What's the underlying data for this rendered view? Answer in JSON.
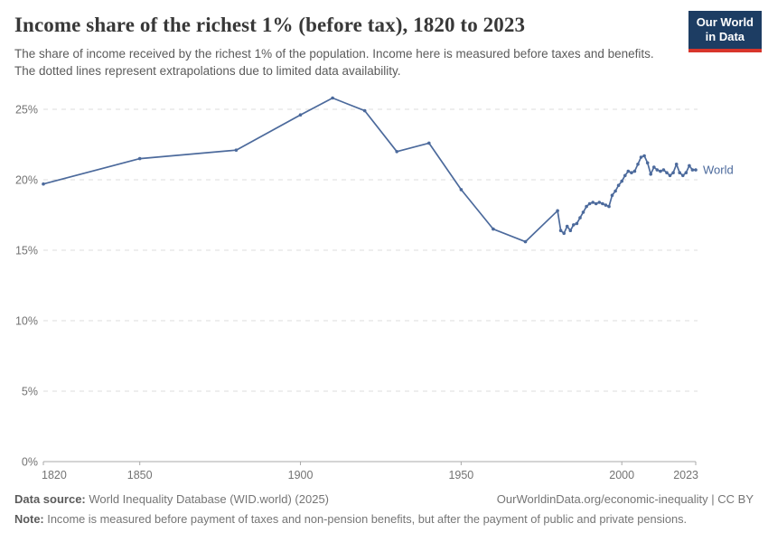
{
  "header": {
    "title": "Income share of the richest 1% (before tax), 1820 to 2023",
    "subtitle": "The share of income received by the richest 1% of the population. Income here is measured before taxes and benefits. The dotted lines represent extrapolations due to limited data availability.",
    "logo": {
      "line1": "Our World",
      "line2": "in Data",
      "bg_color": "#1d3d63",
      "accent_color": "#d8352b"
    }
  },
  "chart_data": {
    "type": "line",
    "title": "Income share of the richest 1% (before tax), 1820 to 2023",
    "xlabel": "",
    "ylabel": "",
    "xlim": [
      1820,
      2023
    ],
    "ylim": [
      0,
      26.5
    ],
    "grid": "horizontal-dashed",
    "legend_position": "end-of-line-label",
    "xticks": [
      1820,
      1850,
      1900,
      1950,
      2000,
      2023
    ],
    "xticklabels": [
      "1820",
      "1850",
      "1900",
      "1950",
      "2000",
      "2023"
    ],
    "yticks": [
      0,
      5,
      10,
      15,
      20,
      25
    ],
    "yticklabels": [
      "0%",
      "5%",
      "10%",
      "15%",
      "20%",
      "25%"
    ],
    "x": [
      1820,
      1850,
      1880,
      1900,
      1910,
      1920,
      1930,
      1940,
      1950,
      1960,
      1970,
      1980,
      1981,
      1982,
      1983,
      1984,
      1985,
      1986,
      1987,
      1988,
      1989,
      1990,
      1991,
      1992,
      1993,
      1994,
      1995,
      1996,
      1997,
      1998,
      1999,
      2000,
      2001,
      2002,
      2003,
      2004,
      2005,
      2006,
      2007,
      2008,
      2009,
      2010,
      2011,
      2012,
      2013,
      2014,
      2015,
      2016,
      2017,
      2018,
      2019,
      2020,
      2021,
      2022,
      2023
    ],
    "series": [
      {
        "name": "World",
        "color": "#4C6A9C",
        "values": [
          19.7,
          21.5,
          22.1,
          24.6,
          25.8,
          24.9,
          22.0,
          22.6,
          19.3,
          16.5,
          15.6,
          17.8,
          16.4,
          16.2,
          16.7,
          16.4,
          16.8,
          16.9,
          17.3,
          17.7,
          18.1,
          18.3,
          18.4,
          18.3,
          18.4,
          18.3,
          18.2,
          18.1,
          18.9,
          19.2,
          19.6,
          19.9,
          20.3,
          20.6,
          20.5,
          20.6,
          21.1,
          21.6,
          21.7,
          21.2,
          20.4,
          20.9,
          20.7,
          20.6,
          20.7,
          20.5,
          20.3,
          20.5,
          21.1,
          20.5,
          20.3,
          20.5,
          21.0,
          20.7,
          20.7
        ]
      }
    ],
    "style": {
      "grid_color": "#dcdcdc",
      "axis_color": "#a9a9a9",
      "tick_label_color": "#737373"
    }
  },
  "footer": {
    "datasource_label": "Data source:",
    "datasource_text": " World Inequality Database (WID.world) (2025)",
    "link_text": "OurWorldinData.org/economic-inequality | CC BY",
    "note_label": "Note:",
    "note_text": " Income is measured before payment of taxes and non-pension benefits, but after the payment of public and private pensions."
  }
}
